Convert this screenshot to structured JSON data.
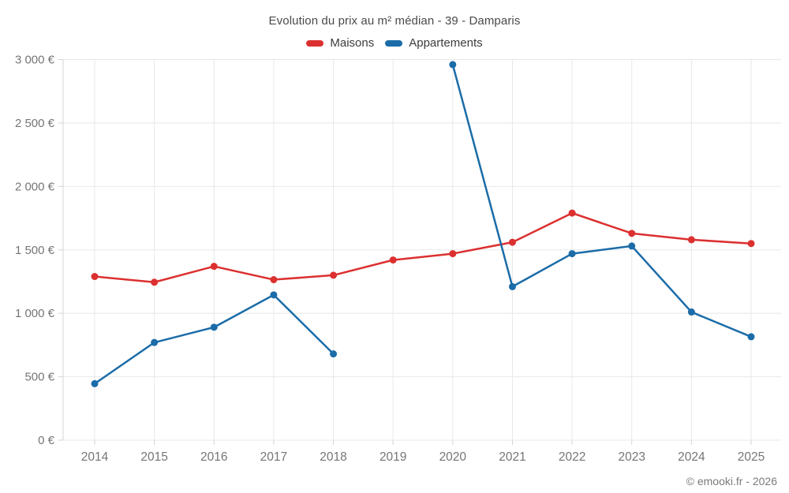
{
  "header": {
    "title": "Evolution du prix au m² médian - 39 - Damparis"
  },
  "footer": {
    "copyright": "© emooki.fr - 2026"
  },
  "colors": {
    "grid": "#e8e8e8",
    "axis": "#d4d4d4",
    "tick_label": "#757575"
  },
  "chart_data": {
    "type": "line",
    "title": "Evolution du prix au m² médian - 39 - Damparis",
    "x": [
      2014,
      2015,
      2016,
      2017,
      2018,
      2019,
      2020,
      2021,
      2022,
      2023,
      2024,
      2025
    ],
    "series": [
      {
        "name": "Maisons",
        "color": "#dc3030",
        "values": [
          1290,
          1245,
          1370,
          1265,
          1300,
          1420,
          1470,
          1560,
          1790,
          1630,
          1580,
          1550
        ]
      },
      {
        "name": "Appartements",
        "color": "#1b6ca8",
        "values": [
          445,
          770,
          890,
          1145,
          680,
          null,
          2960,
          1210,
          1470,
          1530,
          1010,
          815
        ]
      }
    ],
    "ylim": [
      0,
      3000
    ],
    "ytick_step": 500,
    "ytick_labels": [
      "0 €",
      "500 €",
      "1 000 €",
      "1 500 €",
      "2 000 €",
      "2 500 €",
      "3 000 €"
    ],
    "grid": true,
    "legend_position": "top",
    "missing_data_note": "Appartements has no point for 2019"
  }
}
